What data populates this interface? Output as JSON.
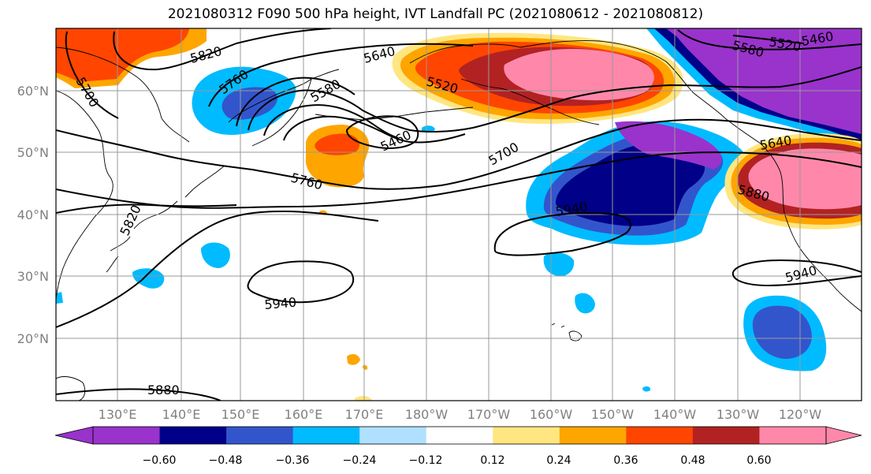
{
  "title": "2021080312 F090 500 hPa height, IVT Landfall PC (2021080612 - 2021080812)",
  "lat_labels": [
    "60°N",
    "50°N",
    "40°N",
    "30°N",
    "20°N"
  ],
  "lon_labels": [
    "130°E",
    "140°E",
    "150°E",
    "160°E",
    "170°E",
    "180°W",
    "170°W",
    "160°W",
    "150°W",
    "140°W",
    "130°W",
    "120°W"
  ],
  "contour_labels": [
    "5820",
    "5760",
    "5700",
    "5640",
    "5580",
    "5520",
    "5460",
    "5700",
    "5760",
    "5820",
    "5940",
    "5940",
    "5880",
    "5940",
    "5880",
    "5640",
    "5580",
    "5520",
    "5460"
  ],
  "colorbar": {
    "ticks": [
      "−0.60",
      "−0.48",
      "−0.36",
      "−0.24",
      "−0.12",
      "0.12",
      "0.24",
      "0.36",
      "0.48",
      "0.60"
    ],
    "colors": [
      "#9933cc",
      "#000088",
      "#3355cc",
      "#00bbff",
      "#b0e0ff",
      "#ffffff",
      "#ffe680",
      "#ffa500",
      "#ff4500",
      "#b22222",
      "#ff88aa"
    ]
  }
}
